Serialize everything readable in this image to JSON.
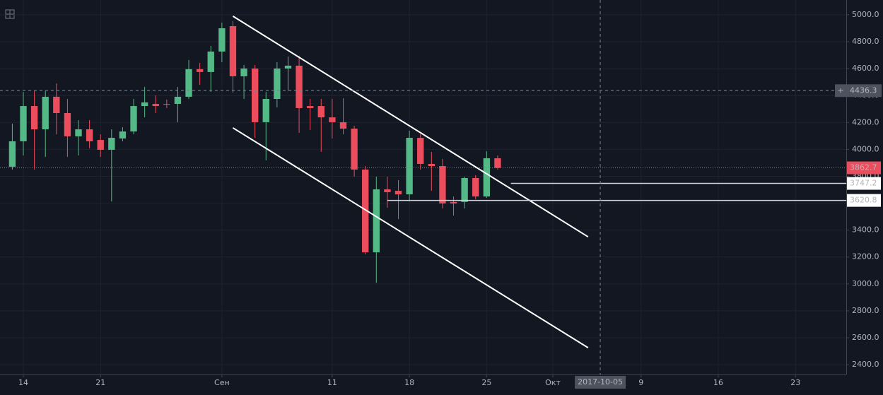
{
  "chart_data": {
    "type": "candlestick",
    "x": [
      -1,
      0,
      1,
      2,
      3,
      4,
      5,
      6,
      7,
      8,
      9,
      10,
      11,
      12,
      13,
      14,
      15,
      16,
      17,
      18,
      19,
      20,
      21,
      22,
      23,
      24,
      25,
      26,
      27,
      28,
      29,
      30,
      31,
      32,
      33,
      34,
      35,
      36,
      37,
      38,
      39,
      40,
      41,
      42,
      43
    ],
    "open": [
      3871,
      4060,
      4322,
      4149,
      4391,
      4270,
      4097,
      4149,
      4070,
      3997,
      4081,
      4133,
      4322,
      4338,
      4338,
      4338,
      4391,
      4596,
      4575,
      4727,
      4916,
      4543,
      4601,
      4202,
      4375,
      4601,
      4622,
      4322,
      4322,
      4238,
      4202,
      4154,
      3850,
      3235,
      3703,
      3692,
      3666,
      4086,
      3892,
      3876,
      3609,
      3609,
      3787,
      3650,
      3934
    ],
    "high": [
      4191,
      4427,
      4438,
      4438,
      4490,
      4375,
      4217,
      4217,
      4112,
      4149,
      4165,
      4375,
      4464,
      4401,
      4370,
      4464,
      4664,
      4643,
      4769,
      4942,
      4953,
      4627,
      4627,
      4427,
      4648,
      4690,
      4695,
      4375,
      4375,
      4375,
      4380,
      4175,
      3876,
      3797,
      3797,
      3771,
      4139,
      4112,
      3981,
      3929,
      3650,
      3797,
      3808,
      3986,
      3955
    ],
    "low": [
      3850,
      3955,
      3850,
      3944,
      4112,
      3944,
      3955,
      4008,
      3944,
      3613,
      4060,
      4112,
      4238,
      4270,
      4307,
      4202,
      4375,
      4480,
      4427,
      4648,
      4422,
      4375,
      4086,
      3918,
      4312,
      4438,
      4123,
      4144,
      3981,
      4081,
      4112,
      3797,
      3220,
      3009,
      3566,
      3482,
      3613,
      3850,
      3692,
      3561,
      3508,
      3561,
      3629,
      3640,
      3850
    ],
    "close": [
      4060,
      4322,
      4149,
      4391,
      4270,
      4097,
      4149,
      4060,
      3997,
      4086,
      4133,
      4322,
      4349,
      4322,
      4333,
      4391,
      4596,
      4575,
      4727,
      4900,
      4543,
      4601,
      4202,
      4375,
      4601,
      4622,
      4307,
      4307,
      4238,
      4202,
      4154,
      3850,
      3235,
      3703,
      3682,
      3666,
      4086,
      3892,
      3876,
      3598,
      3598,
      3787,
      3650,
      3934,
      3862.7
    ],
    "up_color": "#53b987",
    "down_color": "#eb4d5c",
    "xlim": [
      -2.115,
      74.6
    ],
    "xticks": [
      {
        "value": 0,
        "label": "14"
      },
      {
        "value": 7,
        "label": "21"
      },
      {
        "value": 18,
        "label": "Сен"
      },
      {
        "value": 28,
        "label": "11"
      },
      {
        "value": 35,
        "label": "18"
      },
      {
        "value": 42,
        "label": "25"
      },
      {
        "value": 48,
        "label": "Окт"
      },
      {
        "value": 56,
        "label": "9"
      },
      {
        "value": 63,
        "label": "16"
      },
      {
        "value": 70,
        "label": "23"
      }
    ],
    "ylim": [
      2327,
      5110
    ],
    "yticks": [
      {
        "value": 2400,
        "label": "2400.0"
      },
      {
        "value": 2600,
        "label": "2600.0"
      },
      {
        "value": 2800,
        "label": "2800.0"
      },
      {
        "value": 3000,
        "label": "3000.0"
      },
      {
        "value": 3200,
        "label": "3200.0"
      },
      {
        "value": 3400,
        "label": "3400.0"
      },
      {
        "value": 3600,
        "label": "3600.0"
      },
      {
        "value": 3800,
        "label": "3800.0"
      },
      {
        "value": 4000,
        "label": "4000.0"
      },
      {
        "value": 4200,
        "label": "4200.0"
      },
      {
        "value": 4400,
        "label": "4400.0"
      },
      {
        "value": 4600,
        "label": "4600.0"
      },
      {
        "value": 4800,
        "label": "4800.0"
      },
      {
        "value": 5000,
        "label": "5000.0"
      }
    ],
    "grid": true,
    "trendlines": [
      {
        "x": [
          19,
          51.2
        ],
        "y": [
          4990,
          3350
        ]
      },
      {
        "x": [
          19,
          51.2
        ],
        "y": [
          4160,
          2526
        ]
      }
    ],
    "levels": [
      {
        "value": 3747.2,
        "x_start": 44.2
      },
      {
        "value": 3620.8,
        "x_start": 33
      }
    ],
    "last_price": 3862.7,
    "crosshair": {
      "x": {
        "value": 52.3,
        "label": "2017-10-05"
      },
      "y": 4436.3
    }
  }
}
